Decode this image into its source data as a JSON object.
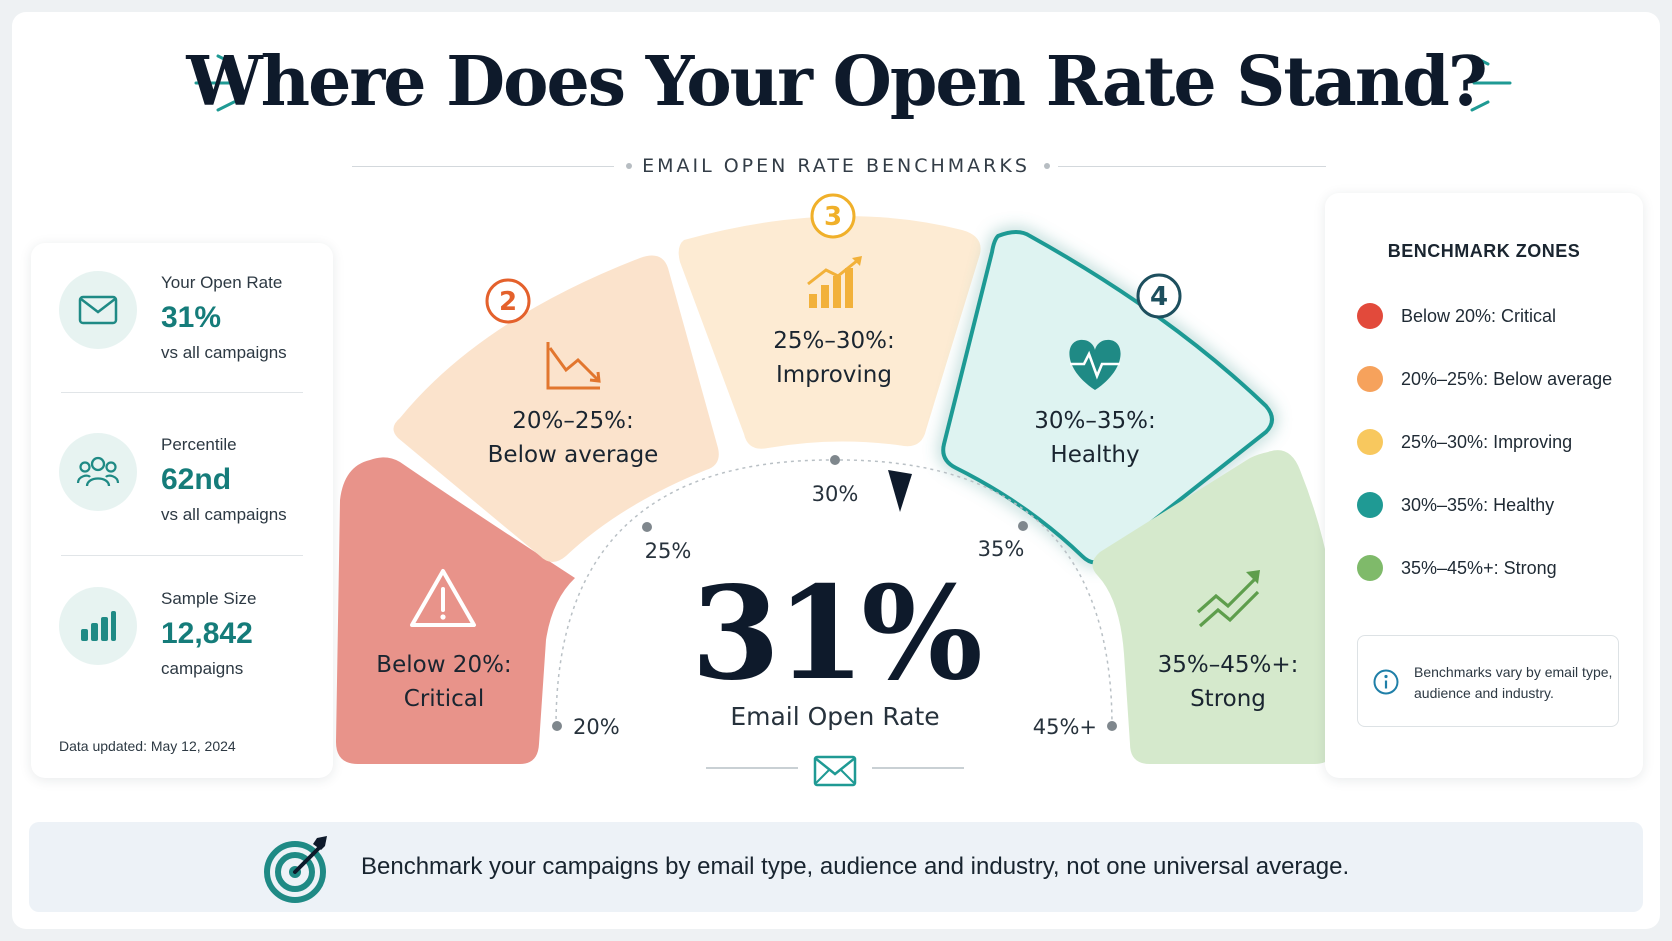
{
  "header": {
    "title": "Where Does Your Open Rate Stand?",
    "subtitle": "EMAIL OPEN RATE BENCHMARKS"
  },
  "stats": [
    {
      "label": "Your Open Rate",
      "value": "31%",
      "sub": "vs all campaigns",
      "icon": "envelope-icon"
    },
    {
      "label": "Percentile",
      "value": "62nd",
      "sub": "vs all campaigns",
      "icon": "users-icon"
    },
    {
      "label": "Sample Size",
      "value": "12,842",
      "sub": "campaigns",
      "icon": "bar-chart-icon"
    }
  ],
  "updated": "Data updated: May 12, 2024",
  "chart_data": {
    "type": "gauge",
    "value": 31,
    "value_label": "31%",
    "caption": "Email Open Rate",
    "ticks": [
      "20%",
      "25%",
      "30%",
      "35%",
      "45%+"
    ],
    "segments": [
      {
        "badge": "",
        "range": "Below 20%:",
        "name": "Critical",
        "min": 0,
        "max": 20,
        "color": "#e8938a",
        "icon": "warning-icon"
      },
      {
        "badge": "2",
        "range": "20%–25%:",
        "name": "Below average",
        "min": 20,
        "max": 25,
        "color": "#fbe3cc",
        "icon": "trend-down-icon"
      },
      {
        "badge": "3",
        "range": "25%–30%:",
        "name": "Improving",
        "min": 25,
        "max": 30,
        "color": "#fdebd3",
        "icon": "bar-growth-icon"
      },
      {
        "badge": "4",
        "range": "30%–35%:",
        "name": "Healthy",
        "min": 30,
        "max": 35,
        "color": "#def3f1",
        "icon": "heart-pulse-icon",
        "highlighted": true
      },
      {
        "badge": "",
        "range": "35%–45%+:",
        "name": "Strong",
        "min": 35,
        "max": 45,
        "color": "#d5e9cc",
        "icon": "trend-up-icon"
      }
    ]
  },
  "legend": {
    "title": "BENCHMARK ZONES",
    "items": [
      {
        "label": "Below 20%: Critical",
        "color": "#e24a3b"
      },
      {
        "label": "20%–25%: Below average",
        "color": "#f6a25c"
      },
      {
        "label": "25%–30%: Improving",
        "color": "#f8c85e"
      },
      {
        "label": "30%–35%: Healthy",
        "color": "#1f9a94"
      },
      {
        "label": "35%–45%+: Strong",
        "color": "#7fba6a"
      }
    ],
    "note": "Benchmarks vary by email type, audience and industry."
  },
  "banner": {
    "text": "Benchmark your campaigns by email type, audience and industry, not one universal average."
  }
}
